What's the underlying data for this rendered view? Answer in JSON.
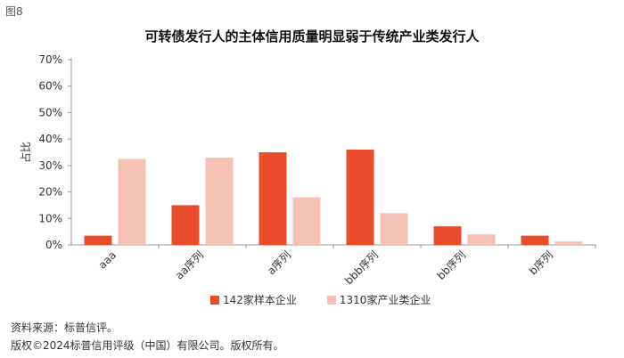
{
  "figure_label": "图8",
  "colors": {
    "series_1": "#e84c2b",
    "series_2": "#f7c2b6",
    "axis": "#999999",
    "text": "#333333"
  },
  "chart_data": {
    "type": "bar",
    "title": "可转债发行人的主体信用质量明显弱于传统产业类发行人",
    "xlabel": "",
    "ylabel": "占比",
    "ylim": [
      0,
      70
    ],
    "y_ticks": [
      "0%",
      "10%",
      "20%",
      "30%",
      "40%",
      "50%",
      "60%",
      "70%"
    ],
    "y_tick_values": [
      0,
      10,
      20,
      30,
      40,
      50,
      60,
      70
    ],
    "grid": false,
    "legend_position": "bottom",
    "categories": [
      "aaa",
      "aa序列",
      "a序列",
      "bbb序列",
      "bb序列",
      "b序列"
    ],
    "series": [
      {
        "name": "142家样本企业",
        "values": [
          3.5,
          15,
          35,
          36,
          7,
          3.5
        ]
      },
      {
        "name": "1310家产业类企业",
        "values": [
          32.5,
          33,
          18,
          12,
          4,
          1.3
        ]
      }
    ]
  },
  "source": {
    "line1": "资料来源：标普信评。",
    "line2": "版权©2024标普信用评级（中国）有限公司。版权所有。"
  }
}
